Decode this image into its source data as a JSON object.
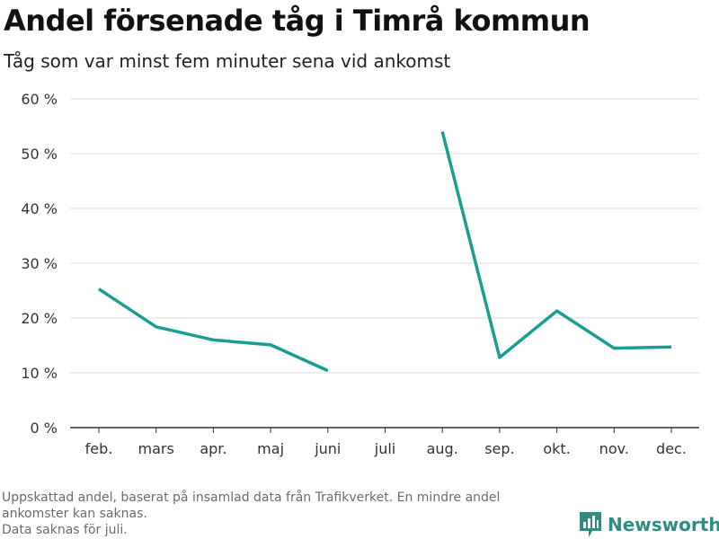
{
  "chart_data": {
    "type": "line",
    "title": "Andel försenade tåg i Timrå kommun",
    "subtitle": "Tåg som var minst fem minuter sena vid ankomst",
    "categories": [
      "feb.",
      "mars",
      "apr.",
      "maj",
      "juni",
      "juli",
      "aug.",
      "sep.",
      "okt.",
      "nov.",
      "dec."
    ],
    "series": [
      {
        "values": [
          25.3,
          18.4,
          16.0,
          15.1,
          10.4,
          null,
          54.0,
          12.8,
          21.3,
          14.5,
          14.7
        ]
      }
    ],
    "ylim": [
      0,
      60
    ],
    "yticks": [
      0,
      10,
      20,
      30,
      40,
      50,
      60
    ],
    "ytick_labels": [
      "0 %",
      "10 %",
      "20 %",
      "30 %",
      "40 %",
      "50 %",
      "60 %"
    ],
    "grid": true,
    "line_color": "#1a9e94"
  },
  "footnote": {
    "line1": "Uppskattad andel, baserat på insamlad data från Trafikverket. En mindre andel ankomster kan saknas.",
    "line2": "Data saknas för juli."
  },
  "logo": {
    "text": "Newsworthy",
    "icon": "newsworthy-logo-icon",
    "color": "#2e8c80"
  }
}
